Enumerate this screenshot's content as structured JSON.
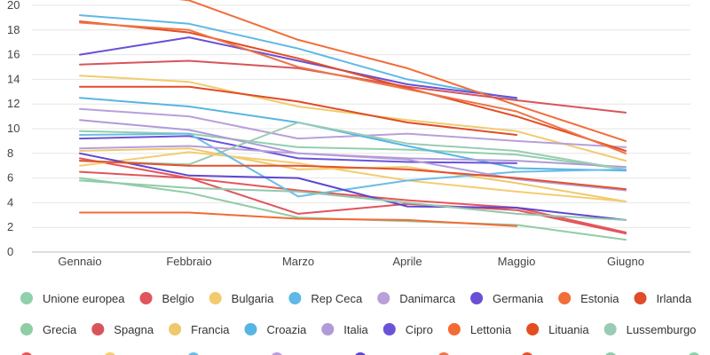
{
  "chart_data": {
    "type": "line",
    "title": "",
    "xlabel": "",
    "ylabel": "",
    "categories": [
      "Gennaio",
      "Febbraio",
      "Marzo",
      "Aprile",
      "Maggio",
      "Giugno"
    ],
    "ylim": [
      0,
      20
    ],
    "yticks": [
      0,
      2,
      4,
      6,
      8,
      10,
      12,
      14,
      16,
      18,
      20
    ],
    "grid": true,
    "legend_position": "bottom",
    "series": [
      {
        "name": "Unione europea",
        "color": "#8fd0ad",
        "values": [
          9.8,
          9.6,
          8.5,
          8.3,
          7.9,
          6.7
        ]
      },
      {
        "name": "Belgio",
        "color": "#e0545c",
        "values": [
          6.5,
          6.0,
          3.1,
          3.9,
          3.4,
          1.5
        ]
      },
      {
        "name": "Bulgaria",
        "color": "#f2cb6c",
        "values": [
          14.3,
          13.8,
          11.8,
          10.7,
          9.8,
          7.4
        ]
      },
      {
        "name": "Rep Ceca",
        "color": "#5fb8e6",
        "values": [
          19.2,
          18.5,
          16.5,
          14.0,
          12.4,
          null
        ]
      },
      {
        "name": "Danimarca",
        "color": "#b8a0da",
        "values": [
          11.6,
          11.0,
          9.2,
          9.6,
          9.0,
          8.5
        ]
      },
      {
        "name": "Germania",
        "color": "#6a4fd6",
        "values": [
          16.0,
          17.4,
          15.5,
          13.6,
          12.5,
          null
        ]
      },
      {
        "name": "Estonia",
        "color": "#f26d3a",
        "values": [
          21.5,
          20.4,
          17.2,
          14.9,
          11.9,
          9.0
        ]
      },
      {
        "name": "Irlanda",
        "color": "#e04b28",
        "values": [
          13.4,
          13.4,
          12.2,
          10.5,
          9.5,
          null
        ]
      },
      {
        "name": "Grecia",
        "color": "#8fcda4",
        "values": [
          6.0,
          4.8,
          2.8,
          2.5,
          2.2,
          1.0
        ]
      },
      {
        "name": "Spagna",
        "color": "#d9535b",
        "values": [
          15.2,
          15.5,
          14.9,
          13.4,
          12.3,
          11.3
        ]
      },
      {
        "name": "Francia",
        "color": "#f0c86c",
        "values": [
          8.2,
          8.4,
          6.7,
          6.9,
          5.6,
          4.1
        ]
      },
      {
        "name": "Croazia",
        "color": "#58b5e3",
        "values": [
          12.5,
          11.8,
          10.5,
          8.6,
          6.8,
          6.6
        ]
      },
      {
        "name": "Italia",
        "color": "#b09ad8",
        "values": [
          10.7,
          9.9,
          8.0,
          7.6,
          7.4,
          6.9
        ]
      },
      {
        "name": "Cipro",
        "color": "#6b53d9",
        "values": [
          9.2,
          9.4,
          7.6,
          7.3,
          7.2,
          null
        ]
      },
      {
        "name": "Lettonia",
        "color": "#f46a33",
        "values": [
          3.2,
          3.2,
          2.7,
          2.6,
          2.1,
          null
        ]
      },
      {
        "name": "Lituania",
        "color": "#e24e22",
        "values": [
          18.7,
          17.8,
          15.7,
          13.3,
          11.0,
          8.2
        ]
      },
      {
        "name": "Lussemburgo",
        "color": "#9ccbb3",
        "values": [
          7.4,
          7.1,
          10.5,
          8.8,
          8.2,
          6.7
        ]
      },
      {
        "name": "",
        "color": "#e8555a",
        "values": [
          7.6,
          6.0,
          5.0,
          4.2,
          3.6,
          1.6
        ]
      },
      {
        "name": "",
        "color": "#f4cc72",
        "values": [
          7.0,
          8.1,
          7.2,
          5.8,
          4.9,
          4.1
        ]
      },
      {
        "name": "",
        "color": "#6cbde8",
        "values": [
          9.5,
          9.6,
          4.5,
          5.8,
          6.5,
          6.7
        ]
      },
      {
        "name": "",
        "color": "#b59edb",
        "values": [
          8.4,
          8.6,
          8.0,
          7.5,
          5.9,
          5.0
        ]
      },
      {
        "name": "",
        "color": "#5f46d0",
        "values": [
          8.0,
          6.2,
          6.0,
          3.7,
          3.6,
          2.6
        ]
      },
      {
        "name": "",
        "color": "#ef7446",
        "values": [
          18.6,
          18.0,
          15.0,
          13.2,
          11.4,
          8.0
        ]
      },
      {
        "name": "",
        "color": "#e3512b",
        "values": [
          7.4,
          7.0,
          7.0,
          6.7,
          6.0,
          5.1
        ]
      },
      {
        "name": "",
        "color": "#92c9ad",
        "values": [
          5.8,
          5.2,
          4.9,
          4.0,
          3.1,
          2.6
        ]
      }
    ],
    "legend_rows": [
      [
        "Unione europea",
        "Belgio",
        "Bulgaria",
        "Rep Ceca",
        "Danimarca",
        "Germania",
        "Estonia",
        "Irlanda"
      ],
      [
        "Grecia",
        "Spagna",
        "Francia",
        "Croazia",
        "Italia",
        "Cipro",
        "Lettonia",
        "Lituania",
        "Lussemburgo"
      ],
      [
        "",
        "",
        "",
        "",
        "",
        "",
        "",
        "",
        ""
      ]
    ]
  }
}
